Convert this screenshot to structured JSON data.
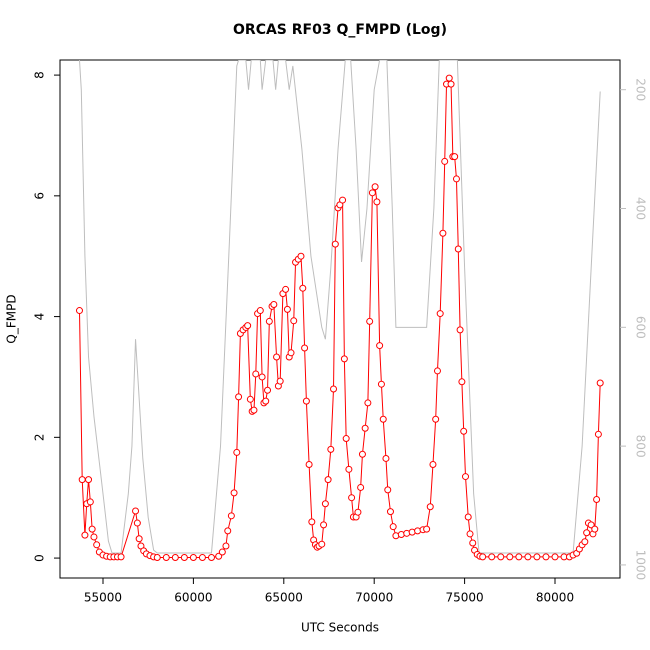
{
  "chart_data": {
    "type": "line",
    "title": "ORCAS RF03 Q_FMPD (Log)",
    "xlabel": "UTC Seconds",
    "ylabel": "Q_FMPD",
    "xlim": [
      52622,
      83595
    ],
    "xticks": [
      55000,
      60000,
      65000,
      70000,
      75000,
      80000
    ],
    "ylim": [
      -0.33,
      8.25
    ],
    "yticks": [
      0,
      2,
      4,
      6,
      8
    ],
    "y2lim": [
      1022,
      150
    ],
    "y2ticks": [
      200,
      400,
      600,
      800,
      1000
    ],
    "series": [
      {
        "color": "#bebebe",
        "axis": "y2",
        "x": [
          53700,
          53800,
          54000,
          54200,
          54500,
          55000,
          55300,
          55500,
          56000,
          56400,
          56600,
          56800,
          57200,
          57500,
          57800,
          58000,
          61000,
          61500,
          62000,
          62400,
          62500,
          62900,
          63050,
          63200,
          63700,
          63800,
          64000,
          64400,
          64550,
          64700,
          65100,
          65300,
          65500,
          66000,
          66500,
          67100,
          67300,
          67600,
          68000,
          68400,
          68700,
          69000,
          69300,
          69600,
          70000,
          70300,
          70700,
          71000,
          71200,
          72900,
          73300,
          73600,
          74600,
          75000,
          75500,
          75800,
          81000,
          81500,
          82000,
          82500
        ],
        "values": [
          150,
          200,
          480,
          650,
          750,
          880,
          960,
          980,
          980,
          880,
          800,
          620,
          820,
          920,
          975,
          980,
          980,
          800,
          450,
          160,
          150,
          150,
          200,
          150,
          150,
          200,
          150,
          150,
          200,
          150,
          150,
          200,
          160,
          300,
          480,
          600,
          620,
          500,
          300,
          150,
          150,
          300,
          490,
          400,
          200,
          150,
          150,
          400,
          600,
          600,
          400,
          150,
          150,
          500,
          880,
          980,
          980,
          800,
          500,
          203
        ]
      },
      {
        "color": "#ff0000",
        "x": [
          53700,
          53850,
          54000,
          54100,
          54200,
          54300,
          54400,
          54500,
          54650,
          54800,
          55000,
          55200,
          55400,
          55600,
          55800,
          56000,
          56800,
          56900,
          57000,
          57100,
          57250,
          57400,
          57600,
          57800,
          58000,
          58500,
          59000,
          59500,
          60000,
          60500,
          61000,
          61400,
          61600,
          61800,
          61900,
          62100,
          62250,
          62400,
          62500,
          62600,
          62750,
          62900,
          63000,
          63150,
          63250,
          63350,
          63450,
          63550,
          63700,
          63800,
          63900,
          64000,
          64100,
          64200,
          64350,
          64450,
          64600,
          64700,
          64800,
          64950,
          65100,
          65200,
          65300,
          65400,
          65550,
          65650,
          65800,
          65950,
          66050,
          66150,
          66250,
          66400,
          66550,
          66650,
          66750,
          66850,
          66950,
          67100,
          67200,
          67300,
          67450,
          67600,
          67750,
          67850,
          68000,
          68100,
          68250,
          68350,
          68450,
          68600,
          68750,
          68850,
          69000,
          69100,
          69250,
          69350,
          69500,
          69650,
          69750,
          69900,
          70050,
          70150,
          70300,
          70400,
          70500,
          70650,
          70750,
          70900,
          71050,
          71200,
          71500,
          71800,
          72100,
          72400,
          72700,
          72900,
          73100,
          73250,
          73400,
          73500,
          73650,
          73800,
          73900,
          74000,
          74150,
          74250,
          74350,
          74450,
          74550,
          74650,
          74750,
          74850,
          74950,
          75050,
          75200,
          75300,
          75450,
          75550,
          75700,
          75850,
          76000,
          76500,
          77000,
          77500,
          78000,
          78500,
          79000,
          79500,
          80000,
          80500,
          80800,
          81000,
          81200,
          81350,
          81500,
          81650,
          81750,
          81850,
          82000,
          82100,
          82200,
          82300,
          82400,
          82500
        ],
        "values": [
          4.1,
          1.3,
          0.38,
          0.9,
          1.3,
          0.93,
          0.48,
          0.35,
          0.22,
          0.1,
          0.05,
          0.03,
          0.02,
          0.02,
          0.02,
          0.02,
          0.78,
          0.58,
          0.32,
          0.2,
          0.12,
          0.07,
          0.04,
          0.02,
          0.01,
          0.01,
          0.01,
          0.01,
          0.01,
          0.01,
          0.01,
          0.03,
          0.1,
          0.2,
          0.45,
          0.7,
          1.08,
          1.75,
          2.67,
          3.72,
          3.78,
          3.82,
          3.85,
          2.63,
          2.43,
          2.45,
          3.05,
          4.05,
          4.1,
          3.0,
          2.57,
          2.6,
          2.78,
          3.92,
          4.17,
          4.2,
          3.33,
          2.85,
          2.93,
          4.38,
          4.45,
          4.12,
          3.33,
          3.4,
          3.93,
          4.9,
          4.95,
          5.0,
          4.47,
          3.48,
          2.6,
          1.55,
          0.6,
          0.3,
          0.22,
          0.18,
          0.2,
          0.23,
          0.55,
          0.9,
          1.3,
          1.8,
          2.8,
          5.2,
          5.8,
          5.85,
          5.93,
          3.3,
          1.98,
          1.47,
          1.0,
          0.68,
          0.68,
          0.76,
          1.17,
          1.72,
          2.15,
          2.57,
          3.92,
          6.05,
          6.15,
          5.9,
          3.52,
          2.88,
          2.3,
          1.65,
          1.13,
          0.77,
          0.52,
          0.37,
          0.39,
          0.41,
          0.43,
          0.45,
          0.47,
          0.48,
          0.85,
          1.55,
          2.3,
          3.1,
          4.05,
          5.38,
          6.57,
          7.85,
          7.95,
          7.85,
          6.65,
          6.65,
          6.28,
          5.12,
          3.78,
          2.92,
          2.1,
          1.35,
          0.68,
          0.4,
          0.25,
          0.13,
          0.06,
          0.03,
          0.02,
          0.02,
          0.02,
          0.02,
          0.02,
          0.02,
          0.02,
          0.02,
          0.02,
          0.02,
          0.02,
          0.05,
          0.08,
          0.15,
          0.22,
          0.27,
          0.42,
          0.58,
          0.55,
          0.4,
          0.48,
          0.97,
          2.05,
          2.9
        ]
      }
    ]
  }
}
